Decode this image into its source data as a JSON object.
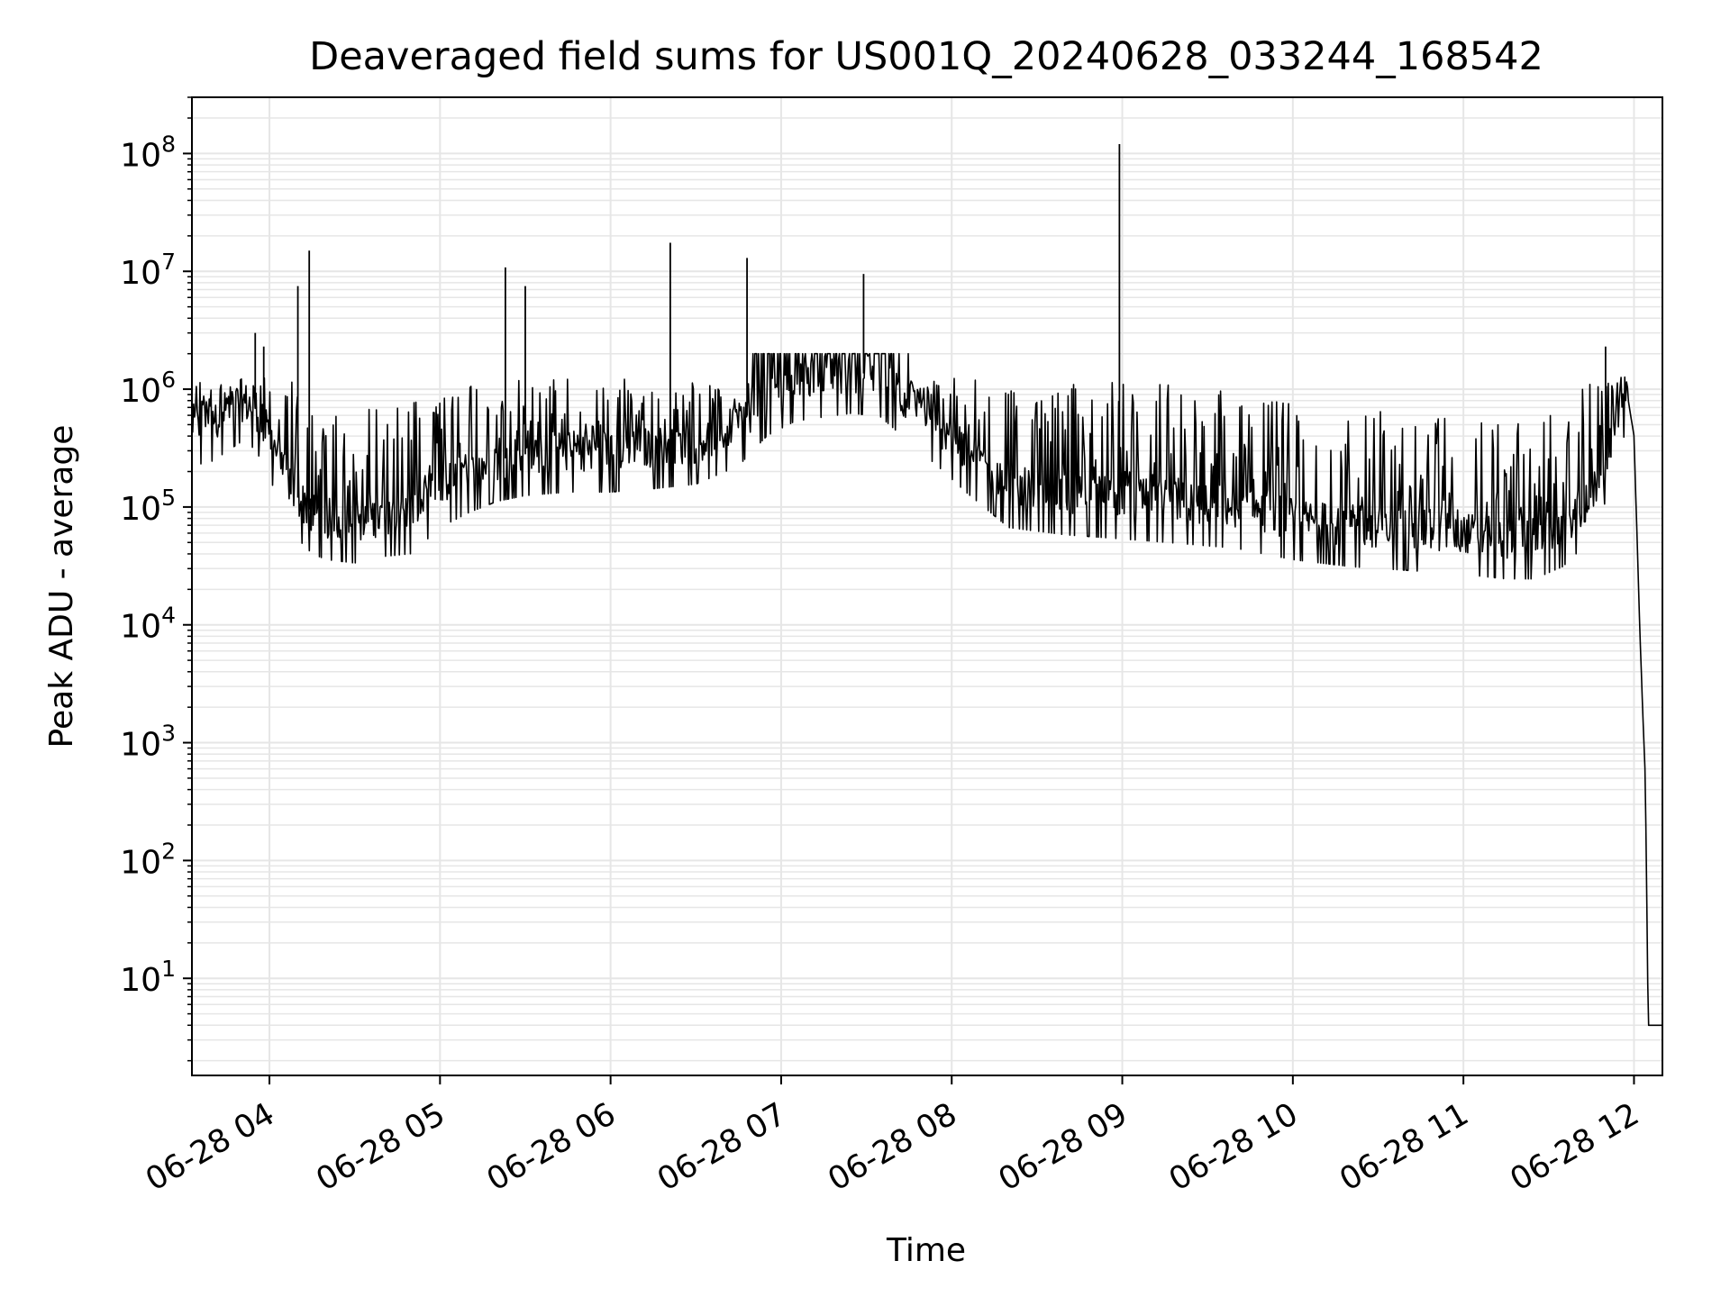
{
  "chart_data": {
    "type": "line",
    "title": "Deaveraged field sums for US001Q_20240628_033244_168542",
    "xlabel": "Time",
    "ylabel": "Peak ADU - average",
    "y_scale": "log",
    "ylim": [
      1.5,
      300000000
    ],
    "xlim": [
      "2024-06-28 03:32:44",
      "2024-06-28 12:10:00"
    ],
    "grid": true,
    "line_color": "#000000",
    "x_ticks": [
      "2024-06-28 04:00",
      "2024-06-28 05:00",
      "2024-06-28 06:00",
      "2024-06-28 07:00",
      "2024-06-28 08:00",
      "2024-06-28 09:00",
      "2024-06-28 10:00",
      "2024-06-28 11:00",
      "2024-06-28 12:00"
    ],
    "x_tick_labels": [
      "06-28 04",
      "06-28 05",
      "06-28 06",
      "06-28 07",
      "06-28 08",
      "06-28 09",
      "06-28 10",
      "06-28 11",
      "06-28 12"
    ],
    "y_ticks": [
      10,
      100,
      1000,
      10000,
      100000,
      1000000,
      10000000,
      100000000
    ],
    "y_tick_bases": [
      "10",
      "10",
      "10",
      "10",
      "10",
      "10",
      "10",
      "10"
    ],
    "y_tick_exponents": [
      "1",
      "2",
      "3",
      "4",
      "5",
      "6",
      "7",
      "8"
    ],
    "series": [
      {
        "x": [
          "2024-06-28 03:33",
          "2024-06-28 03:40",
          "2024-06-28 03:50",
          "2024-06-28 03:55",
          "2024-06-28 04:00",
          "2024-06-28 04:05",
          "2024-06-28 04:10",
          "2024-06-28 04:15",
          "2024-06-28 04:20",
          "2024-06-28 04:30",
          "2024-06-28 04:40",
          "2024-06-28 04:50",
          "2024-06-28 05:00",
          "2024-06-28 05:10",
          "2024-06-28 05:20",
          "2024-06-28 05:30",
          "2024-06-28 05:45",
          "2024-06-28 06:00",
          "2024-06-28 06:15",
          "2024-06-28 06:30",
          "2024-06-28 06:45",
          "2024-06-28 06:55",
          "2024-06-28 07:05",
          "2024-06-28 07:15",
          "2024-06-28 07:25",
          "2024-06-28 07:35",
          "2024-06-28 07:45",
          "2024-06-28 07:55",
          "2024-06-28 08:05",
          "2024-06-28 08:20",
          "2024-06-28 08:40",
          "2024-06-28 09:00",
          "2024-06-28 09:20",
          "2024-06-28 09:40",
          "2024-06-28 10:00",
          "2024-06-28 10:20",
          "2024-06-28 10:40",
          "2024-06-28 11:00",
          "2024-06-28 11:15",
          "2024-06-28 11:25",
          "2024-06-28 11:35",
          "2024-06-28 11:45",
          "2024-06-28 11:50",
          "2024-06-28 11:53",
          "2024-06-28 11:56",
          "2024-06-28 11:58",
          "2024-06-28 12:00",
          "2024-06-28 12:02",
          "2024-06-28 12:03",
          "2024-06-28 12:04",
          "2024-06-28 12:05",
          "2024-06-28 12:10"
        ],
        "y": [
          500000,
          550000,
          800000,
          700000,
          400000,
          200000,
          120000,
          90000,
          80000,
          75000,
          85000,
          90000,
          150000,
          200000,
          250000,
          280000,
          300000,
          300000,
          320000,
          350000,
          500000,
          900000,
          1200000,
          1300000,
          1400000,
          1300000,
          800000,
          500000,
          300000,
          150000,
          130000,
          120000,
          110000,
          100000,
          80000,
          70000,
          65000,
          60000,
          55000,
          55000,
          70000,
          120000,
          250000,
          500000,
          900000,
          800000,
          400000,
          10000,
          2000,
          500,
          4,
          4
        ]
      }
    ],
    "spikes": [
      {
        "x": "2024-06-28 03:55",
        "y": 3000000
      },
      {
        "x": "2024-06-28 03:58",
        "y": 2300000
      },
      {
        "x": "2024-06-28 04:10",
        "y": 7500000
      },
      {
        "x": "2024-06-28 04:14",
        "y": 15000000
      },
      {
        "x": "2024-06-28 05:23",
        "y": 10800000
      },
      {
        "x": "2024-06-28 05:30",
        "y": 7500000
      },
      {
        "x": "2024-06-28 06:21",
        "y": 17500000
      },
      {
        "x": "2024-06-28 06:48",
        "y": 13000000
      },
      {
        "x": "2024-06-28 07:29",
        "y": 9500000
      },
      {
        "x": "2024-06-28 08:59",
        "y": 120000000
      },
      {
        "x": "2024-06-28 11:50",
        "y": 2300000
      }
    ]
  }
}
